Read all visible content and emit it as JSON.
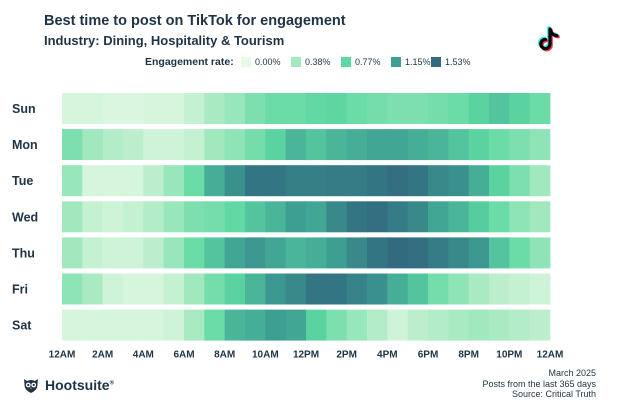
{
  "header": {
    "title": "Best time to post on TikTok for engagement",
    "subtitle": "Industry: Dining, Hospitality & Tourism"
  },
  "chart_data": {
    "type": "heatmap",
    "title": "Best time to post on TikTok for engagement",
    "subtitle": "Industry: Dining, Hospitality & Tourism",
    "legend_title": "Engagement rate:",
    "legend": [
      {
        "label": "0.00%",
        "value": 0.0,
        "color": "#e8f9e8"
      },
      {
        "label": "0.38%",
        "value": 0.38,
        "color": "#a5e9c0"
      },
      {
        "label": "0.77%",
        "value": 0.77,
        "color": "#5ed8a2"
      },
      {
        "label": "1.15%",
        "value": 1.15,
        "color": "#3d9e92"
      },
      {
        "label": "1.53%",
        "value": 1.53,
        "color": "#326a80"
      }
    ],
    "value_unit": "%",
    "value_range": [
      0,
      1.53
    ],
    "rows": [
      "Sun",
      "Mon",
      "Tue",
      "Wed",
      "Thu",
      "Fri",
      "Sat"
    ],
    "hours": 24,
    "x_tick_labels": [
      "12AM",
      "2AM",
      "4AM",
      "6AM",
      "8AM",
      "10AM",
      "12PM",
      "2PM",
      "4PM",
      "6PM",
      "8PM",
      "10PM",
      "12AM"
    ],
    "values": [
      [
        0.1,
        0.1,
        0.08,
        0.08,
        0.1,
        0.1,
        0.2,
        0.35,
        0.45,
        0.6,
        0.7,
        0.7,
        0.75,
        0.78,
        0.7,
        0.65,
        0.6,
        0.6,
        0.65,
        0.7,
        0.8,
        0.9,
        0.8,
        0.7
      ],
      [
        0.6,
        0.4,
        0.3,
        0.25,
        0.15,
        0.15,
        0.2,
        0.4,
        0.5,
        0.65,
        0.8,
        1.0,
        0.9,
        1.0,
        1.05,
        1.1,
        1.1,
        1.05,
        1.0,
        0.9,
        0.8,
        0.7,
        0.6,
        0.5
      ],
      [
        0.45,
        0.1,
        0.1,
        0.1,
        0.25,
        0.45,
        0.7,
        1.05,
        1.25,
        1.45,
        1.45,
        1.38,
        1.38,
        1.4,
        1.4,
        1.45,
        1.5,
        1.45,
        1.3,
        1.25,
        1.05,
        0.8,
        0.6,
        0.4
      ],
      [
        0.4,
        0.2,
        0.15,
        0.2,
        0.3,
        0.45,
        0.6,
        0.65,
        0.75,
        0.9,
        1.0,
        1.15,
        1.1,
        1.3,
        1.45,
        1.5,
        1.4,
        1.3,
        1.1,
        1.0,
        0.85,
        0.7,
        0.5,
        0.4
      ],
      [
        0.4,
        0.2,
        0.15,
        0.15,
        0.25,
        0.45,
        0.7,
        0.9,
        1.1,
        1.2,
        1.1,
        1.0,
        1.05,
        1.15,
        1.3,
        1.45,
        1.53,
        1.5,
        1.4,
        1.3,
        1.2,
        0.9,
        0.7,
        0.5
      ],
      [
        0.5,
        0.35,
        0.15,
        0.1,
        0.1,
        0.2,
        0.4,
        0.65,
        0.8,
        1.0,
        1.2,
        1.3,
        1.45,
        1.45,
        1.35,
        1.25,
        1.05,
        0.9,
        0.65,
        0.5,
        0.35,
        0.25,
        0.2,
        0.15
      ],
      [
        0.1,
        0.1,
        0.1,
        0.1,
        0.1,
        0.15,
        0.35,
        0.7,
        1.0,
        1.05,
        1.15,
        1.1,
        0.8,
        0.6,
        0.45,
        0.3,
        0.15,
        0.25,
        0.3,
        0.35,
        0.4,
        0.35,
        0.3,
        0.25
      ]
    ]
  },
  "footer": {
    "brand": "Hootsuite",
    "registered": "®",
    "date": "March 2025",
    "period": "Posts from the last 365 days",
    "source": "Source: Critical Truth"
  },
  "icons": {
    "brand_logo": "owl-icon",
    "platform_logo": "tiktok-icon"
  }
}
